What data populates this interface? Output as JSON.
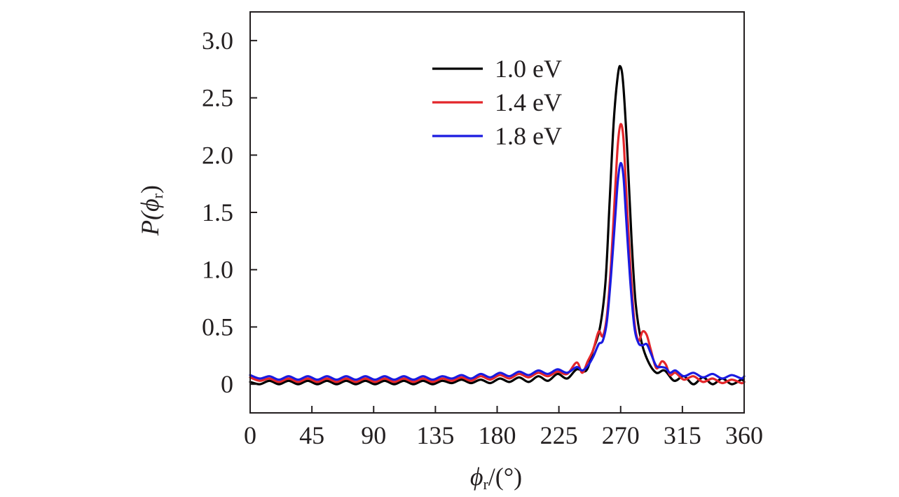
{
  "chart_data": {
    "type": "line",
    "title": "",
    "xlabel": {
      "symbol": "ϕ",
      "subscript": "r",
      "suffix": "/(°)"
    },
    "ylabel": {
      "prefix": "P(",
      "symbol": "ϕ",
      "subscript": "r",
      "suffix": ")"
    },
    "xlim": [
      0,
      360
    ],
    "ylim": [
      -0.25,
      3.25
    ],
    "xticks": [
      0,
      45,
      90,
      135,
      180,
      225,
      270,
      315,
      360
    ],
    "xtick_labels": [
      "0",
      "45",
      "90",
      "135",
      "180",
      "225",
      "270",
      "315",
      "360"
    ],
    "yticks": [
      0,
      0.5,
      1.0,
      1.5,
      2.0,
      2.5,
      3.0
    ],
    "ytick_labels": [
      "0",
      "0.5",
      "1.0",
      "1.5",
      "2.0",
      "2.5",
      "3.0"
    ],
    "grid": false,
    "legend_position": "top-center",
    "series": [
      {
        "name": "1.0 eV",
        "color": "#000000",
        "x": [
          0,
          7,
          14,
          21,
          28,
          35,
          42,
          49,
          56,
          63,
          70,
          77,
          84,
          91,
          98,
          105,
          112,
          119,
          126,
          133,
          140,
          147,
          154,
          161,
          168,
          175,
          182,
          189,
          196,
          203,
          210,
          217,
          224,
          231,
          238,
          245,
          250,
          255,
          259,
          262,
          265,
          268,
          270,
          272,
          275,
          278,
          281,
          285,
          290,
          296,
          302,
          309,
          316,
          323,
          330,
          337,
          344,
          351,
          358,
          360
        ],
        "y": [
          0.02,
          0.0,
          0.03,
          0.0,
          0.03,
          0.0,
          0.03,
          0.0,
          0.03,
          0.0,
          0.03,
          0.0,
          0.03,
          0.0,
          0.03,
          0.0,
          0.03,
          0.0,
          0.03,
          0.0,
          0.03,
          0.01,
          0.04,
          0.01,
          0.04,
          0.01,
          0.05,
          0.02,
          0.06,
          0.02,
          0.07,
          0.03,
          0.09,
          0.05,
          0.13,
          0.12,
          0.3,
          0.5,
          0.9,
          1.6,
          2.3,
          2.7,
          2.77,
          2.6,
          2.0,
          1.25,
          0.7,
          0.38,
          0.2,
          0.1,
          0.12,
          0.03,
          0.07,
          0.0,
          0.06,
          0.0,
          0.05,
          0.0,
          0.04,
          0.02
        ]
      },
      {
        "name": "1.4 eV",
        "color": "#e3262a",
        "x": [
          0,
          7,
          14,
          21,
          28,
          35,
          42,
          49,
          56,
          63,
          70,
          77,
          84,
          91,
          98,
          105,
          112,
          119,
          126,
          133,
          140,
          147,
          154,
          161,
          168,
          175,
          182,
          189,
          196,
          203,
          210,
          217,
          224,
          231,
          238,
          242,
          246,
          250,
          254,
          257,
          260,
          263,
          266,
          268,
          270,
          272,
          274,
          277,
          280,
          283,
          286,
          289,
          292,
          296,
          300,
          303,
          306,
          310,
          316,
          323,
          330,
          337,
          344,
          351,
          358,
          360
        ],
        "y": [
          0.06,
          0.03,
          0.05,
          0.02,
          0.05,
          0.02,
          0.05,
          0.02,
          0.05,
          0.02,
          0.05,
          0.02,
          0.05,
          0.02,
          0.05,
          0.02,
          0.05,
          0.02,
          0.05,
          0.02,
          0.05,
          0.03,
          0.06,
          0.03,
          0.07,
          0.04,
          0.08,
          0.05,
          0.09,
          0.06,
          0.1,
          0.07,
          0.11,
          0.09,
          0.19,
          0.1,
          0.2,
          0.3,
          0.46,
          0.42,
          0.6,
          1.05,
          1.7,
          2.1,
          2.27,
          2.15,
          1.7,
          1.05,
          0.55,
          0.38,
          0.46,
          0.43,
          0.3,
          0.14,
          0.2,
          0.17,
          0.08,
          0.1,
          0.04,
          0.07,
          0.02,
          0.05,
          0.01,
          0.04,
          0.01,
          0.02
        ]
      },
      {
        "name": "1.8 eV",
        "color": "#1a1ae0",
        "x": [
          0,
          7,
          14,
          21,
          28,
          35,
          42,
          49,
          56,
          63,
          70,
          77,
          84,
          91,
          98,
          105,
          112,
          119,
          126,
          133,
          140,
          147,
          154,
          161,
          168,
          175,
          182,
          189,
          196,
          203,
          210,
          217,
          224,
          231,
          238,
          242,
          246,
          250,
          254,
          257,
          260,
          263,
          266,
          268,
          270,
          272,
          274,
          277,
          280,
          283,
          286,
          289,
          292,
          296,
          300,
          303,
          306,
          310,
          316,
          323,
          330,
          337,
          344,
          351,
          358,
          360
        ],
        "y": [
          0.08,
          0.05,
          0.07,
          0.04,
          0.07,
          0.04,
          0.07,
          0.04,
          0.07,
          0.04,
          0.07,
          0.04,
          0.07,
          0.04,
          0.07,
          0.04,
          0.07,
          0.04,
          0.07,
          0.04,
          0.07,
          0.05,
          0.08,
          0.05,
          0.09,
          0.06,
          0.1,
          0.07,
          0.11,
          0.08,
          0.12,
          0.09,
          0.13,
          0.1,
          0.15,
          0.12,
          0.16,
          0.24,
          0.35,
          0.38,
          0.55,
          0.95,
          1.45,
          1.78,
          1.93,
          1.82,
          1.45,
          0.9,
          0.5,
          0.36,
          0.34,
          0.35,
          0.27,
          0.16,
          0.15,
          0.14,
          0.1,
          0.12,
          0.07,
          0.1,
          0.06,
          0.09,
          0.05,
          0.08,
          0.05,
          0.07
        ]
      }
    ]
  }
}
